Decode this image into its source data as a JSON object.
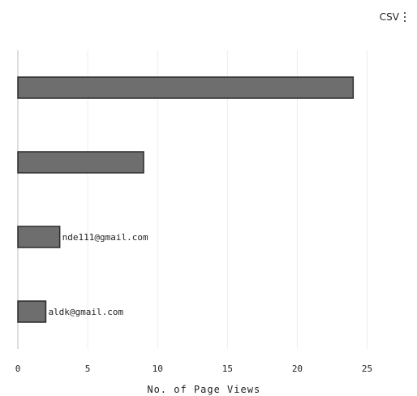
{
  "toolbar": {
    "csv_label": "CSV"
  },
  "chart_data": {
    "type": "bar",
    "orientation": "horizontal",
    "categories": [
      "",
      "",
      "nde111@gmail.com",
      "aldk@gmail.com"
    ],
    "values": [
      24,
      9,
      3,
      2
    ],
    "xlabel": "No. of Page Views",
    "ylabel": "",
    "xlim": [
      0,
      27
    ],
    "xticks": [
      0,
      5,
      10,
      15,
      20,
      25
    ],
    "grid": true,
    "bar_color": "#6e6e6e",
    "bar_stroke": "#2a2a2a"
  }
}
